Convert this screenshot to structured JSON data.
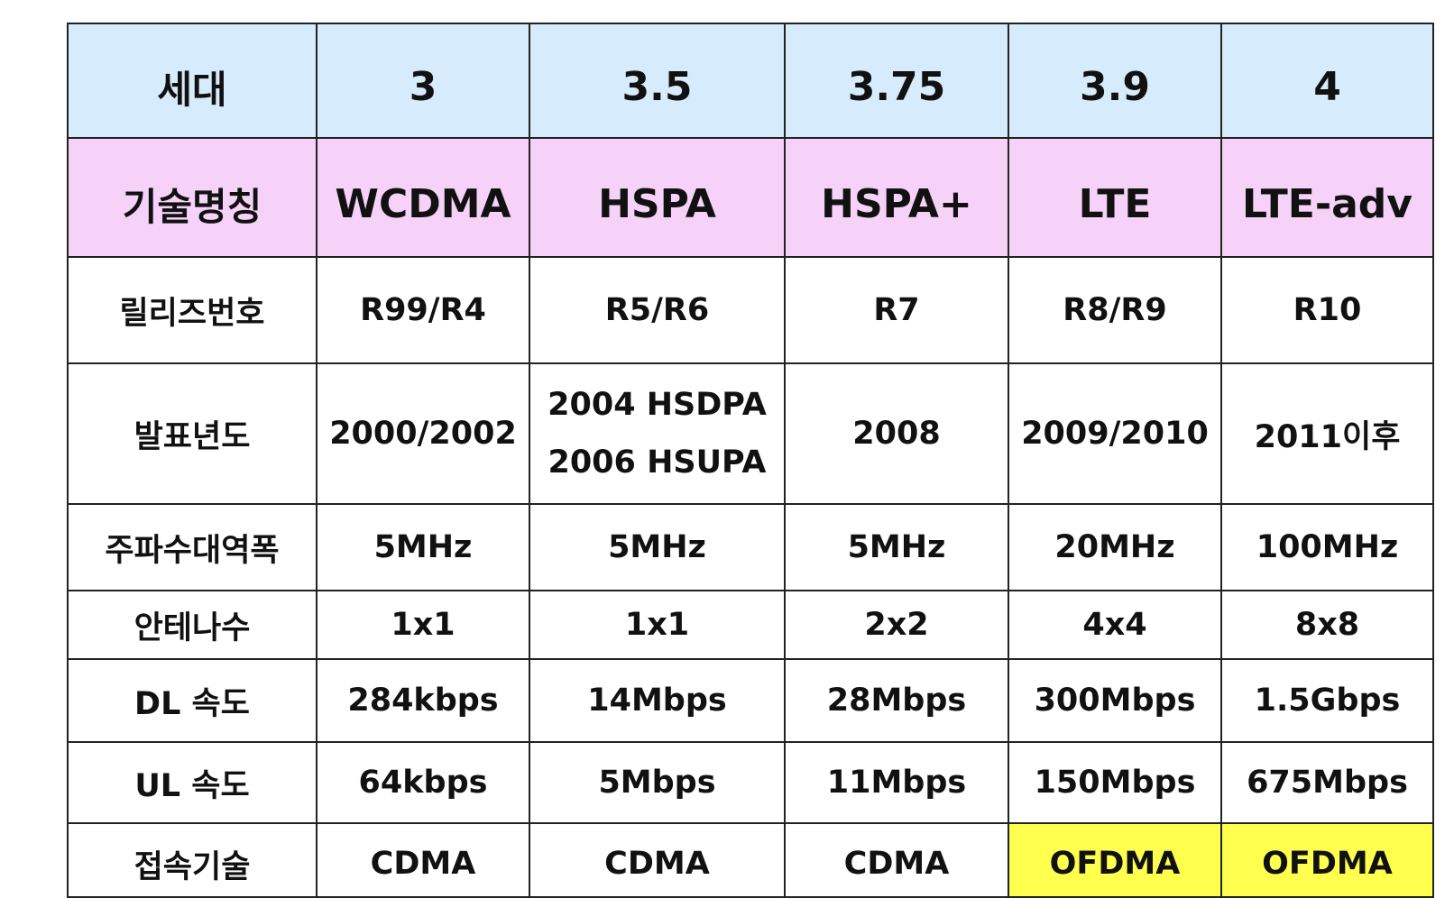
{
  "table": {
    "rows": [
      {
        "key": "generation",
        "label": "세대",
        "values": [
          "3",
          "3.5",
          "3.75",
          "3.9",
          "4"
        ]
      },
      {
        "key": "tech",
        "label": "기술명칭",
        "values": [
          "WCDMA",
          "HSPA",
          "HSPA+",
          "LTE",
          "LTE-adv"
        ]
      },
      {
        "key": "release",
        "label": "릴리즈번호",
        "values": [
          "R99/R4",
          "R5/R6",
          "R7",
          "R8/R9",
          "R10"
        ]
      },
      {
        "key": "year",
        "label": "발표년도",
        "values": [
          "2000/2002",
          "2004 HSDPA",
          "2008",
          "2009/2010",
          "2011이후"
        ],
        "hspa_second_line": "2006 HSUPA"
      },
      {
        "key": "bandwidth",
        "label": "주파수대역폭",
        "values": [
          "5MHz",
          "5MHz",
          "5MHz",
          "20MHz",
          "100MHz"
        ]
      },
      {
        "key": "antenna",
        "label": "안테나수",
        "values": [
          "1x1",
          "1x1",
          "2x2",
          "4x4",
          "8x8"
        ]
      },
      {
        "key": "dl",
        "label": "DL 속도",
        "values": [
          "284kbps",
          "14Mbps",
          "28Mbps",
          "300Mbps",
          "1.5Gbps"
        ]
      },
      {
        "key": "ul",
        "label": "UL 속도",
        "values": [
          "64kbps",
          "5Mbps",
          "11Mbps",
          "150Mbps",
          "675Mbps"
        ]
      },
      {
        "key": "access",
        "label": "접속기술",
        "values": [
          "CDMA",
          "CDMA",
          "CDMA",
          "OFDMA",
          "OFDMA"
        ]
      }
    ]
  },
  "colors": {
    "header_row_bg": "#d6ebfb",
    "tech_row_bg": "#f6d2f9",
    "highlight_bg": "#ffff4d",
    "border": "#222222"
  }
}
